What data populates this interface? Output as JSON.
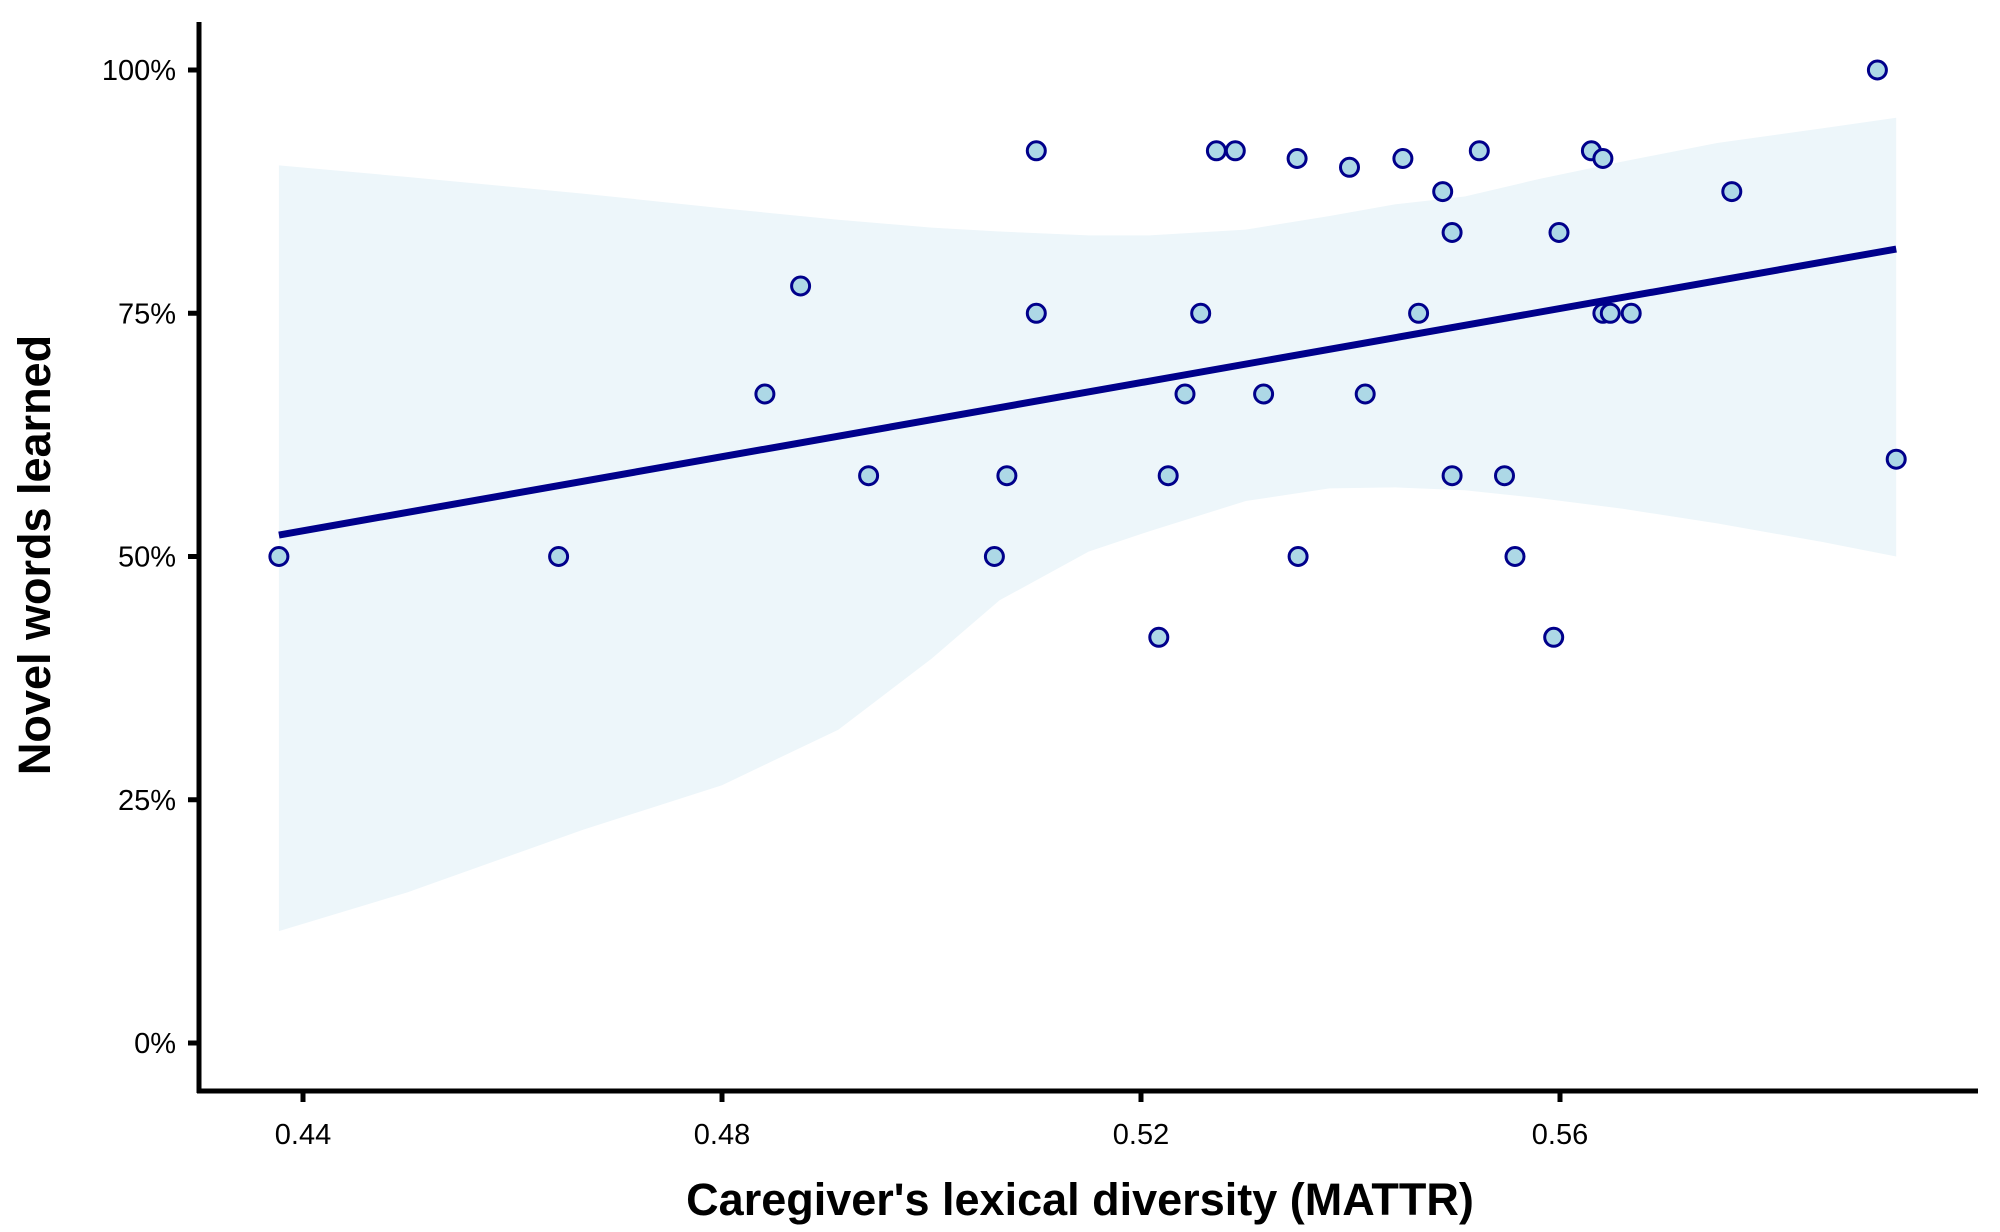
{
  "chart_data": {
    "type": "scatter",
    "title": "",
    "xlabel": "Caregiver's lexical diversity (MATTR)",
    "ylabel": "Novel words learned",
    "xlim": [
      0.4305,
      0.597
    ],
    "ylim": [
      -0.05,
      1.05
    ],
    "x_ticks": [
      0.44,
      0.48,
      0.52,
      0.56
    ],
    "x_tick_labels": [
      "0.44",
      "0.48",
      "0.52",
      "0.56"
    ],
    "y_ticks": [
      0,
      0.25,
      0.5,
      0.75,
      1.0
    ],
    "y_tick_labels": [
      "0%",
      "25%",
      "50%",
      "75%",
      "100%"
    ],
    "grid": false,
    "legend": "none",
    "colors": {
      "point_fill": "#add8e6",
      "point_stroke": "#00008b",
      "fit_line": "#00008b",
      "ribbon": "#edf6fa",
      "axis": "#000000"
    },
    "points": [
      {
        "x": 0.4377,
        "y": 0.5
      },
      {
        "x": 0.4644,
        "y": 0.5
      },
      {
        "x": 0.4841,
        "y": 0.667
      },
      {
        "x": 0.4875,
        "y": 0.778
      },
      {
        "x": 0.494,
        "y": 0.583
      },
      {
        "x": 0.506,
        "y": 0.5
      },
      {
        "x": 0.5072,
        "y": 0.583
      },
      {
        "x": 0.51,
        "y": 0.917
      },
      {
        "x": 0.51,
        "y": 0.75
      },
      {
        "x": 0.5217,
        "y": 0.417
      },
      {
        "x": 0.5226,
        "y": 0.583
      },
      {
        "x": 0.5242,
        "y": 0.667
      },
      {
        "x": 0.5257,
        "y": 0.75
      },
      {
        "x": 0.5272,
        "y": 0.917
      },
      {
        "x": 0.529,
        "y": 0.917
      },
      {
        "x": 0.5317,
        "y": 0.667
      },
      {
        "x": 0.5349,
        "y": 0.909
      },
      {
        "x": 0.535,
        "y": 0.5
      },
      {
        "x": 0.5399,
        "y": 0.9
      },
      {
        "x": 0.5414,
        "y": 0.667
      },
      {
        "x": 0.545,
        "y": 0.909
      },
      {
        "x": 0.5465,
        "y": 0.75
      },
      {
        "x": 0.5488,
        "y": 0.875
      },
      {
        "x": 0.5497,
        "y": 0.833
      },
      {
        "x": 0.5497,
        "y": 0.583
      },
      {
        "x": 0.5523,
        "y": 0.917
      },
      {
        "x": 0.5547,
        "y": 0.583
      },
      {
        "x": 0.5557,
        "y": 0.5
      },
      {
        "x": 0.5594,
        "y": 0.417
      },
      {
        "x": 0.5599,
        "y": 0.833
      },
      {
        "x": 0.563,
        "y": 0.917
      },
      {
        "x": 0.5641,
        "y": 0.909
      },
      {
        "x": 0.5641,
        "y": 0.75
      },
      {
        "x": 0.5648,
        "y": 0.75
      },
      {
        "x": 0.5668,
        "y": 0.75
      },
      {
        "x": 0.5764,
        "y": 0.875
      },
      {
        "x": 0.5903,
        "y": 1.0
      },
      {
        "x": 0.5921,
        "y": 0.6
      }
    ],
    "fit_line": {
      "method": "linear",
      "x": [
        0.4377,
        0.5921
      ],
      "y": [
        0.522,
        0.816
      ]
    },
    "confidence_band": [
      {
        "x": 0.4377,
        "lower": 0.115,
        "upper": 0.902
      },
      {
        "x": 0.45,
        "lower": 0.155,
        "upper": 0.89
      },
      {
        "x": 0.4667,
        "lower": 0.219,
        "upper": 0.873
      },
      {
        "x": 0.48,
        "lower": 0.265,
        "upper": 0.858
      },
      {
        "x": 0.4911,
        "lower": 0.322,
        "upper": 0.846
      },
      {
        "x": 0.5,
        "lower": 0.395,
        "upper": 0.838
      },
      {
        "x": 0.5065,
        "lower": 0.455,
        "upper": 0.834
      },
      {
        "x": 0.515,
        "lower": 0.505,
        "upper": 0.83
      },
      {
        "x": 0.5208,
        "lower": 0.526,
        "upper": 0.83
      },
      {
        "x": 0.53,
        "lower": 0.557,
        "upper": 0.836
      },
      {
        "x": 0.538,
        "lower": 0.57,
        "upper": 0.85
      },
      {
        "x": 0.5443,
        "lower": 0.571,
        "upper": 0.862
      },
      {
        "x": 0.5509,
        "lower": 0.568,
        "upper": 0.87
      },
      {
        "x": 0.558,
        "lower": 0.56,
        "upper": 0.888
      },
      {
        "x": 0.566,
        "lower": 0.549,
        "upper": 0.906
      },
      {
        "x": 0.575,
        "lower": 0.534,
        "upper": 0.925
      },
      {
        "x": 0.585,
        "lower": 0.515,
        "upper": 0.94
      },
      {
        "x": 0.5921,
        "lower": 0.5,
        "upper": 0.951
      }
    ]
  }
}
